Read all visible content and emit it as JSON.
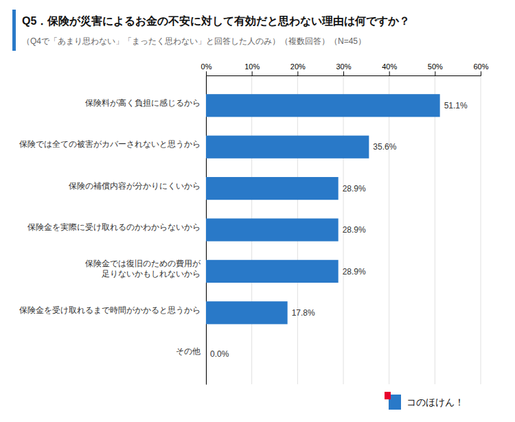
{
  "chart_data": {
    "type": "bar",
    "orientation": "horizontal",
    "title": "Q5．保険が災害によるお金の不安に対して有効だと思わない理由は何ですか？",
    "subtitle": "（Q4で「あまり思わない」「まったく思わない」と回答した人のみ）（複数回答）（N=45）",
    "categories": [
      "保険料が高く負担に感じるから",
      "保険では全ての被害がカバーされないと思うから",
      "保険の補償内容が分かりにくいから",
      "保険金を実際に受け取れるのかわからないから",
      "保険金では復旧のための費用が\n足りないかもしれないから",
      "保険金を受け取れるまで時間がかかると思うから",
      "その他"
    ],
    "values": [
      51.1,
      35.6,
      28.9,
      28.9,
      28.9,
      17.8,
      0.0
    ],
    "value_labels": [
      "51.1%",
      "35.6%",
      "28.9%",
      "28.9%",
      "28.9%",
      "17.8%",
      "0.0%"
    ],
    "data_labels": true,
    "color": "#2979C8",
    "xlim": [
      0,
      60
    ],
    "xticks": [
      {
        "value": 0,
        "label": "0%"
      },
      {
        "value": 10,
        "label": "10%"
      },
      {
        "value": 20,
        "label": "20%"
      },
      {
        "value": 30,
        "label": "30%"
      },
      {
        "value": 40,
        "label": "40%"
      },
      {
        "value": 50,
        "label": "50%"
      },
      {
        "value": 60,
        "label": "60%"
      }
    ],
    "grid": true,
    "annotations": [
      "コのほけん！"
    ]
  }
}
